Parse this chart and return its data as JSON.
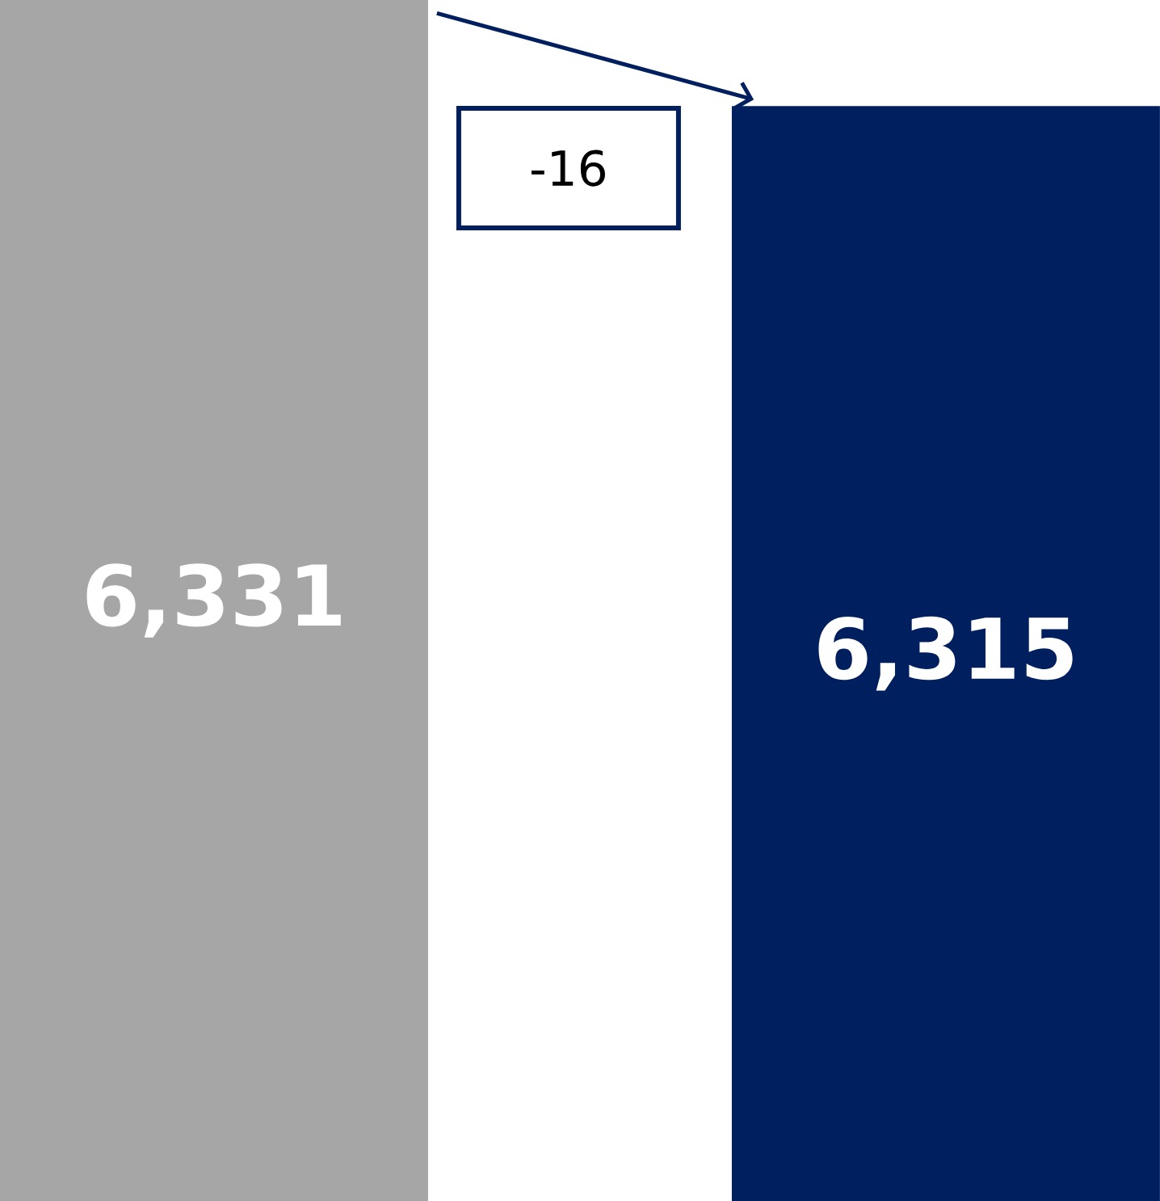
{
  "chart_data": {
    "type": "bar",
    "categories": [
      null,
      null
    ],
    "values": [
      6331,
      6315
    ],
    "colors": [
      "#a6a6a6",
      "#001f5f"
    ],
    "value_labels": [
      "6,331",
      "6,315"
    ],
    "ylim": [
      6150,
      6331
    ],
    "annotations": [
      "-16"
    ]
  }
}
